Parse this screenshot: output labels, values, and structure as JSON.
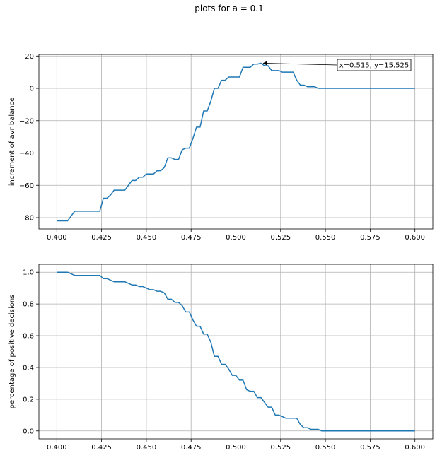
{
  "figure_title": "plots for a = 0.1",
  "chart_data": [
    {
      "type": "line",
      "xlabel": "l",
      "ylabel": "increment of avr balance",
      "xlim": [
        0.39,
        0.61
      ],
      "ylim": [
        -87,
        21
      ],
      "xticks": [
        "0.400",
        "0.425",
        "0.450",
        "0.475",
        "0.500",
        "0.525",
        "0.550",
        "0.575",
        "0.600"
      ],
      "yticks": [
        "−80",
        "−60",
        "−40",
        "−20",
        "0",
        "20"
      ],
      "grid": true,
      "color": "#1f77b4",
      "x": [
        0.4,
        0.402,
        0.404,
        0.406,
        0.408,
        0.41,
        0.412,
        0.414,
        0.416,
        0.418,
        0.42,
        0.422,
        0.424,
        0.426,
        0.428,
        0.43,
        0.432,
        0.434,
        0.436,
        0.438,
        0.44,
        0.442,
        0.444,
        0.446,
        0.448,
        0.45,
        0.452,
        0.454,
        0.456,
        0.458,
        0.46,
        0.462,
        0.464,
        0.466,
        0.468,
        0.47,
        0.472,
        0.474,
        0.476,
        0.478,
        0.48,
        0.482,
        0.484,
        0.486,
        0.488,
        0.49,
        0.492,
        0.494,
        0.496,
        0.498,
        0.5,
        0.502,
        0.504,
        0.506,
        0.508,
        0.51,
        0.512,
        0.514,
        0.516,
        0.518,
        0.52,
        0.522,
        0.524,
        0.526,
        0.528,
        0.53,
        0.532,
        0.534,
        0.536,
        0.538,
        0.54,
        0.542,
        0.544,
        0.546,
        0.548,
        0.55,
        0.56,
        0.57,
        0.58,
        0.59,
        0.6
      ],
      "y": [
        -82,
        -82,
        -82,
        -82,
        -79,
        -76,
        -76,
        -76,
        -76,
        -76,
        -76,
        -76,
        -76,
        -68,
        -68,
        -66,
        -63,
        -63,
        -63,
        -63,
        -60,
        -57,
        -57,
        -55,
        -55,
        -53,
        -53,
        -53,
        -51,
        -51,
        -49,
        -43,
        -43,
        -44,
        -44,
        -38,
        -37,
        -37,
        -31,
        -24,
        -24,
        -14,
        -14,
        -8,
        0,
        0,
        5,
        5,
        7,
        7,
        7,
        7,
        13,
        13,
        13,
        15,
        15,
        15.525,
        14,
        14,
        11,
        11,
        11,
        10,
        10,
        10,
        10,
        5,
        2,
        2,
        1,
        1,
        1,
        0,
        0,
        0,
        0,
        0,
        0,
        0,
        0
      ],
      "annotation": {
        "text": "x=0.515, y=15.525",
        "x": 0.515,
        "y": 15.525
      }
    },
    {
      "type": "line",
      "xlabel": "l",
      "ylabel": "percentage of positive decisions",
      "xlim": [
        0.39,
        0.61
      ],
      "ylim": [
        -0.05,
        1.05
      ],
      "xticks": [
        "0.400",
        "0.425",
        "0.450",
        "0.475",
        "0.500",
        "0.525",
        "0.550",
        "0.575",
        "0.600"
      ],
      "yticks": [
        "0.0",
        "0.2",
        "0.4",
        "0.6",
        "0.8",
        "1.0"
      ],
      "grid": true,
      "color": "#1f77b4",
      "x": [
        0.4,
        0.402,
        0.404,
        0.406,
        0.408,
        0.41,
        0.412,
        0.414,
        0.416,
        0.418,
        0.42,
        0.422,
        0.424,
        0.426,
        0.428,
        0.43,
        0.432,
        0.434,
        0.436,
        0.438,
        0.44,
        0.442,
        0.444,
        0.446,
        0.448,
        0.45,
        0.452,
        0.454,
        0.456,
        0.458,
        0.46,
        0.462,
        0.464,
        0.466,
        0.468,
        0.47,
        0.472,
        0.474,
        0.476,
        0.478,
        0.48,
        0.482,
        0.484,
        0.486,
        0.488,
        0.49,
        0.492,
        0.494,
        0.496,
        0.498,
        0.5,
        0.502,
        0.504,
        0.506,
        0.508,
        0.51,
        0.512,
        0.514,
        0.516,
        0.518,
        0.52,
        0.522,
        0.524,
        0.526,
        0.528,
        0.53,
        0.532,
        0.534,
        0.536,
        0.538,
        0.54,
        0.542,
        0.544,
        0.546,
        0.548,
        0.55,
        0.56,
        0.57,
        0.58,
        0.59,
        0.6
      ],
      "y": [
        1.0,
        1.0,
        1.0,
        1.0,
        0.99,
        0.98,
        0.98,
        0.98,
        0.98,
        0.98,
        0.98,
        0.98,
        0.98,
        0.96,
        0.96,
        0.95,
        0.94,
        0.94,
        0.94,
        0.94,
        0.93,
        0.92,
        0.92,
        0.91,
        0.91,
        0.9,
        0.89,
        0.89,
        0.88,
        0.88,
        0.87,
        0.83,
        0.83,
        0.81,
        0.81,
        0.79,
        0.75,
        0.75,
        0.7,
        0.66,
        0.66,
        0.61,
        0.61,
        0.56,
        0.47,
        0.47,
        0.42,
        0.42,
        0.39,
        0.35,
        0.35,
        0.32,
        0.32,
        0.26,
        0.25,
        0.25,
        0.21,
        0.21,
        0.18,
        0.15,
        0.15,
        0.1,
        0.1,
        0.09,
        0.08,
        0.08,
        0.08,
        0.08,
        0.04,
        0.02,
        0.02,
        0.01,
        0.01,
        0.01,
        0.0,
        0.0,
        0.0,
        0.0,
        0.0,
        0.0,
        0.0
      ]
    }
  ]
}
